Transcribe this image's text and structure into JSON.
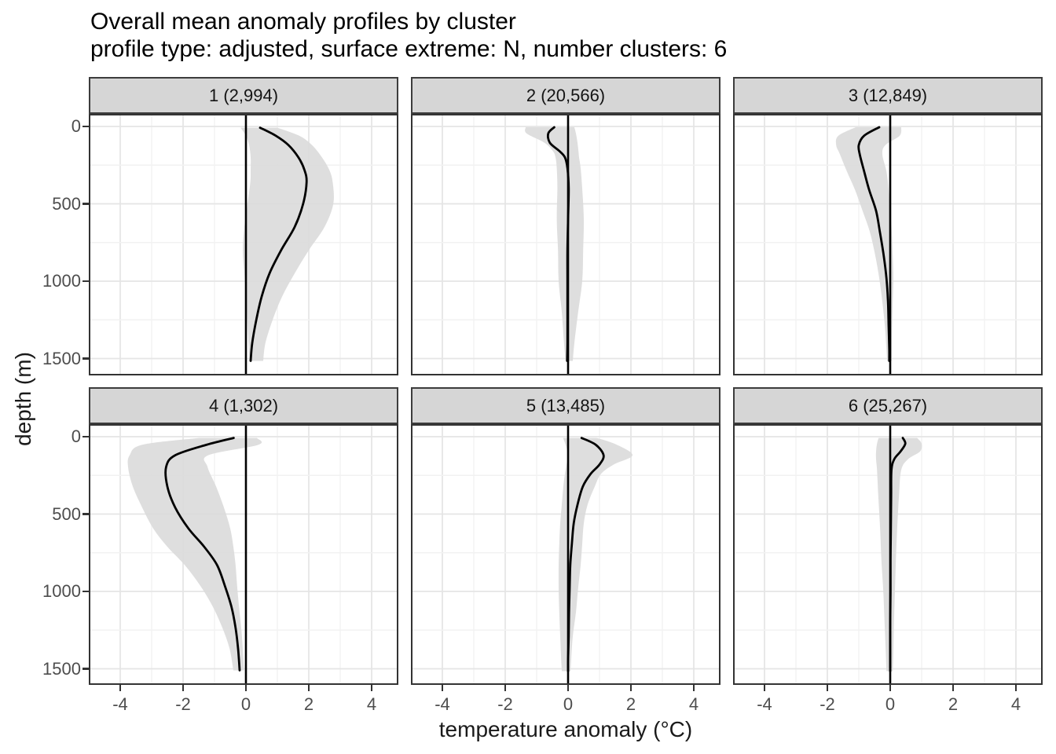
{
  "header": {
    "title": "Overall mean anomaly profiles by cluster",
    "subtitle": "profile type: adjusted, surface extreme: N, number clusters: 6"
  },
  "colors": {
    "ribbon_fill": "#d9d9d9",
    "mean_line": "#000000",
    "zero_line": "#000000",
    "strip_fill": "#d6d6d6",
    "strip_border": "#3c3c3c",
    "panel_border": "#333333",
    "grid_major": "#e5e5e5",
    "grid_minor": "#f2f2f2",
    "tick_text": "#4d4d4d",
    "panel_bg": "#ffffff"
  },
  "chart_data": {
    "type": "line",
    "title": "Overall mean anomaly profiles by cluster",
    "subtitle": "profile type: adjusted, surface extreme: N, number clusters: 6",
    "layout": "2 rows x 3 columns of facets; mean profile line with grey uncertainty ribbon; vertical reference line at 0; y axis (depth) increases downward",
    "x_axis": {
      "title": "temperature anomaly (°C)",
      "tick_labels": [
        "-4",
        "-2",
        "0",
        "2",
        "4"
      ],
      "tick_values": [
        -4,
        -2,
        0,
        2,
        4
      ],
      "minor_tick_values": [
        -3,
        -1,
        1,
        3
      ],
      "range": [
        -5,
        4.85
      ],
      "grid": true
    },
    "y_axis": {
      "title": "depth (m)",
      "tick_labels": [
        "0",
        "500",
        "1000",
        "1500"
      ],
      "tick_values": [
        0,
        500,
        1000,
        1500
      ],
      "minor_tick_values": [
        250,
        750,
        1250
      ],
      "range": [
        -80,
        1600
      ],
      "inverted": true,
      "grid": true
    },
    "zero_reference_line_x": 0,
    "facets": [
      {
        "label": "1 (2,994)",
        "cluster": 1,
        "count": 2994,
        "depth": [
          8,
          60,
          120,
          200,
          280,
          360,
          500,
          650,
          800,
          950,
          1100,
          1250,
          1400,
          1515
        ],
        "mean": [
          0.45,
          0.95,
          1.35,
          1.67,
          1.86,
          1.93,
          1.82,
          1.55,
          1.12,
          0.75,
          0.5,
          0.33,
          0.2,
          0.15
        ],
        "upper": [
          1.0,
          1.7,
          2.1,
          2.42,
          2.65,
          2.76,
          2.78,
          2.5,
          2.0,
          1.55,
          1.15,
          0.85,
          0.62,
          0.55
        ],
        "lower": [
          -0.17,
          0.0,
          0.1,
          0.15,
          0.15,
          0.14,
          0.05,
          -0.05,
          -0.1,
          -0.05,
          0.0,
          0.04,
          0.08,
          0.1
        ]
      },
      {
        "label": "2 (20,566)",
        "cluster": 2,
        "count": 20566,
        "depth": [
          5,
          45,
          105,
          160,
          200,
          270,
          400,
          600,
          800,
          1000,
          1200,
          1400,
          1515
        ],
        "mean": [
          -0.44,
          -0.63,
          -0.58,
          -0.27,
          -0.1,
          -0.02,
          0.02,
          0.0,
          -0.02,
          -0.02,
          -0.02,
          -0.02,
          -0.03
        ],
        "upper": [
          0.2,
          0.25,
          0.3,
          0.33,
          0.35,
          0.4,
          0.45,
          0.5,
          0.48,
          0.45,
          0.32,
          0.2,
          0.15
        ],
        "lower": [
          -1.35,
          -1.32,
          -0.75,
          -0.48,
          -0.4,
          -0.36,
          -0.34,
          -0.36,
          -0.32,
          -0.3,
          -0.2,
          -0.13,
          -0.08
        ]
      },
      {
        "label": "3 (12,849)",
        "cluster": 3,
        "count": 12849,
        "depth": [
          5,
          60,
          120,
          180,
          290,
          410,
          545,
          680,
          830,
          980,
          1135,
          1290,
          1440,
          1515
        ],
        "mean": [
          -0.35,
          -0.83,
          -1.0,
          -0.97,
          -0.83,
          -0.67,
          -0.45,
          -0.33,
          -0.21,
          -0.12,
          -0.07,
          -0.05,
          -0.03,
          -0.03
        ],
        "upper": [
          0.35,
          0.3,
          -0.15,
          -0.25,
          -0.12,
          -0.05,
          0.0,
          0.05,
          0.08,
          0.1,
          0.08,
          0.06,
          0.05,
          0.05
        ],
        "lower": [
          -1.1,
          -1.65,
          -1.72,
          -1.6,
          -1.38,
          -1.12,
          -0.88,
          -0.65,
          -0.48,
          -0.35,
          -0.25,
          -0.17,
          -0.12,
          -0.1
        ]
      },
      {
        "label": "4 (1,302)",
        "cluster": 4,
        "count": 1302,
        "depth": [
          8,
          52,
          120,
          196,
          322,
          458,
          593,
          711,
          829,
          964,
          1100,
          1235,
          1370,
          1510
        ],
        "mean": [
          -0.39,
          -1.25,
          -2.25,
          -2.54,
          -2.5,
          -2.25,
          -1.83,
          -1.33,
          -0.92,
          -0.67,
          -0.46,
          -0.33,
          -0.25,
          -0.2
        ],
        "upper": [
          0.35,
          0.4,
          -1.2,
          -1.22,
          -0.95,
          -0.7,
          -0.5,
          -0.4,
          -0.33,
          -0.28,
          -0.22,
          -0.15,
          -0.1,
          -0.06
        ],
        "lower": [
          -1.5,
          -3.3,
          -3.7,
          -3.75,
          -3.6,
          -3.3,
          -2.95,
          -2.5,
          -1.95,
          -1.45,
          -1.05,
          -0.75,
          -0.52,
          -0.4
        ]
      },
      {
        "label": "5 (13,485)",
        "cluster": 5,
        "count": 13485,
        "depth": [
          8,
          52,
          120,
          180,
          240,
          322,
          440,
          560,
          695,
          830,
          980,
          1135,
          1290,
          1440,
          1515
        ],
        "mean": [
          0.43,
          0.88,
          1.13,
          1.0,
          0.72,
          0.47,
          0.3,
          0.18,
          0.12,
          0.07,
          0.05,
          0.03,
          0.02,
          0.0,
          0.0
        ],
        "upper": [
          0.92,
          1.55,
          2.05,
          1.45,
          1.05,
          0.85,
          0.62,
          0.5,
          0.45,
          0.4,
          0.32,
          0.25,
          0.15,
          0.1,
          0.08
        ],
        "lower": [
          -0.16,
          -0.08,
          0.0,
          -0.05,
          -0.1,
          -0.15,
          -0.2,
          -0.25,
          -0.28,
          -0.3,
          -0.3,
          -0.28,
          -0.25,
          -0.22,
          -0.2
        ]
      },
      {
        "label": "6 (25,267)",
        "cluster": 6,
        "count": 25267,
        "depth": [
          8,
          45,
          95,
          145,
          215,
          380,
          600,
          800,
          1000,
          1200,
          1400,
          1515
        ],
        "mean": [
          0.4,
          0.48,
          0.33,
          0.13,
          0.04,
          0.03,
          0.02,
          0.01,
          0.01,
          0.0,
          0.0,
          0.0
        ],
        "upper": [
          0.86,
          1.0,
          0.95,
          0.57,
          0.35,
          0.28,
          0.22,
          0.18,
          0.15,
          0.12,
          0.1,
          0.08
        ],
        "lower": [
          -0.37,
          -0.42,
          -0.45,
          -0.45,
          -0.42,
          -0.38,
          -0.32,
          -0.28,
          -0.22,
          -0.18,
          -0.14,
          -0.12
        ]
      }
    ]
  }
}
